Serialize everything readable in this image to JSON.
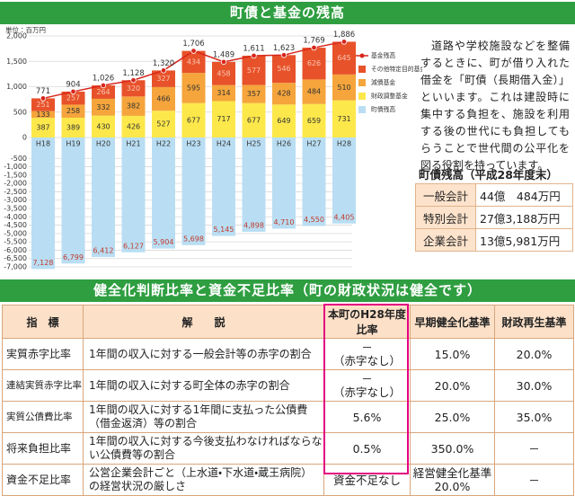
{
  "header": {
    "title": "町債と基金の残高"
  },
  "chart_data": {
    "type": "bar",
    "stacked": true,
    "unit": "単位：百万円",
    "categories": [
      "H18",
      "H19",
      "H20",
      "H21",
      "H22",
      "H23",
      "H24",
      "H25",
      "H26",
      "H27",
      "H28"
    ],
    "series": [
      {
        "name": "財政調整基金",
        "color": "#fde84b",
        "values": [
          387,
          389,
          430,
          426,
          527,
          677,
          717,
          677,
          649,
          659,
          731
        ]
      },
      {
        "name": "減債基金",
        "color": "#f5a53c",
        "values": [
          133,
          258,
          332,
          382,
          466,
          595,
          314,
          357,
          428,
          484,
          510
        ]
      },
      {
        "name": "その他特定目的基金",
        "color": "#e8522a",
        "values": [
          251,
          257,
          264,
          320,
          327,
          434,
          458,
          577,
          546,
          626,
          645
        ]
      },
      {
        "name": "町債残高",
        "color": "#b9def3",
        "values": [
          -7128,
          -6799,
          -6412,
          -6127,
          -5904,
          -5698,
          -5145,
          -4898,
          -4710,
          -4550,
          -4405
        ],
        "value_labels": [
          "7,128",
          "6,799",
          "6,412",
          "6,127",
          "5,904",
          "5,698",
          "5,145",
          "4,898",
          "4,710",
          "4,550",
          "4,405"
        ]
      },
      {
        "name": "基金残高",
        "type": "line",
        "color": "#d7261b",
        "values": [
          771,
          904,
          1026,
          1128,
          1320,
          1706,
          1489,
          1611,
          1623,
          1769,
          1886
        ],
        "value_labels": [
          "771",
          "904",
          "1,026",
          "1,128",
          "1,320",
          "1,706",
          "1,489",
          "1,611",
          "1,623",
          "1,769",
          "1,886"
        ]
      }
    ],
    "ylim": [
      -7000,
      2000
    ],
    "yticks": [
      {
        "value": 2000,
        "label": "2,000"
      },
      {
        "value": 1500,
        "label": "1,500"
      },
      {
        "value": 1000,
        "label": "1,000"
      },
      500,
      0,
      -500,
      {
        "value": -1000,
        "label": "-1,000"
      },
      {
        "value": -1500,
        "label": "-1,500"
      },
      {
        "value": -2000,
        "label": "-2,000"
      },
      {
        "value": -2500,
        "label": "-2,500"
      },
      {
        "value": -3000,
        "label": "-3,000"
      },
      {
        "value": -3500,
        "label": "-3,500"
      },
      {
        "value": -4000,
        "label": "-4,000"
      },
      {
        "value": -4500,
        "label": "-4,500"
      },
      {
        "value": -5000,
        "label": "-5,000"
      },
      {
        "value": -5500,
        "label": "-5,500"
      },
      {
        "value": -6000,
        "label": "-6,000"
      },
      {
        "value": -6500,
        "label": "-6,500"
      },
      {
        "value": -7000,
        "label": "-7,000"
      }
    ],
    "grid": true,
    "legend": "top-right"
  },
  "description": "道路や学校施設などを整備するときに、町が借り入れた借金を「町債（長期借入金）」といいます。これは建設時に集中する負担を、施設を利用する後の世代にも負担してもらうことで世代間の公平化を図る役割を持っています。",
  "debt_table": {
    "title": "町債残高（平成28年度末）",
    "rows": [
      [
        "一般会計",
        "44億　484万円"
      ],
      [
        "特別会計",
        "27億3,188万円"
      ],
      [
        "企業会計",
        "13億5,981万円"
      ]
    ]
  },
  "section2": {
    "title": "健全化判断比率と資金不足比率（町の財政状況は健全です）",
    "table": {
      "header": [
        "指　標",
        "解　　説",
        "本町のH28年度比率",
        "早期健全化基準",
        "財政再生基準"
      ],
      "rows": [
        [
          "実質赤字比率",
          "1年間の収入に対する一般会計等の赤字の割合",
          [
            "－",
            "（赤字なし）"
          ],
          "15.0%",
          "20.0%"
        ],
        [
          "連結実質赤字比率",
          "1年間の収入に対する町全体の赤字の割合",
          [
            "－",
            "（赤字なし）"
          ],
          "20.0%",
          "30.0%"
        ],
        [
          "実質公債費比率",
          "1年間の収入に対する1年間に支払った公債費（借金返済）等の割合",
          "5.6%",
          "25.0%",
          "35.0%"
        ],
        [
          "将来負担比率",
          "1年間の収入に対する今後支払わなければならない公債費等の割合",
          "0.5%",
          "350.0%",
          "－"
        ],
        [
          "資金不足比率",
          "公営企業会計ごと（上水道・下水道・蔵王病院）の経営状況の厳しさ",
          "資金不足なし",
          [
            "経営健全化基準",
            "20.0%"
          ],
          "－"
        ]
      ]
    }
  }
}
